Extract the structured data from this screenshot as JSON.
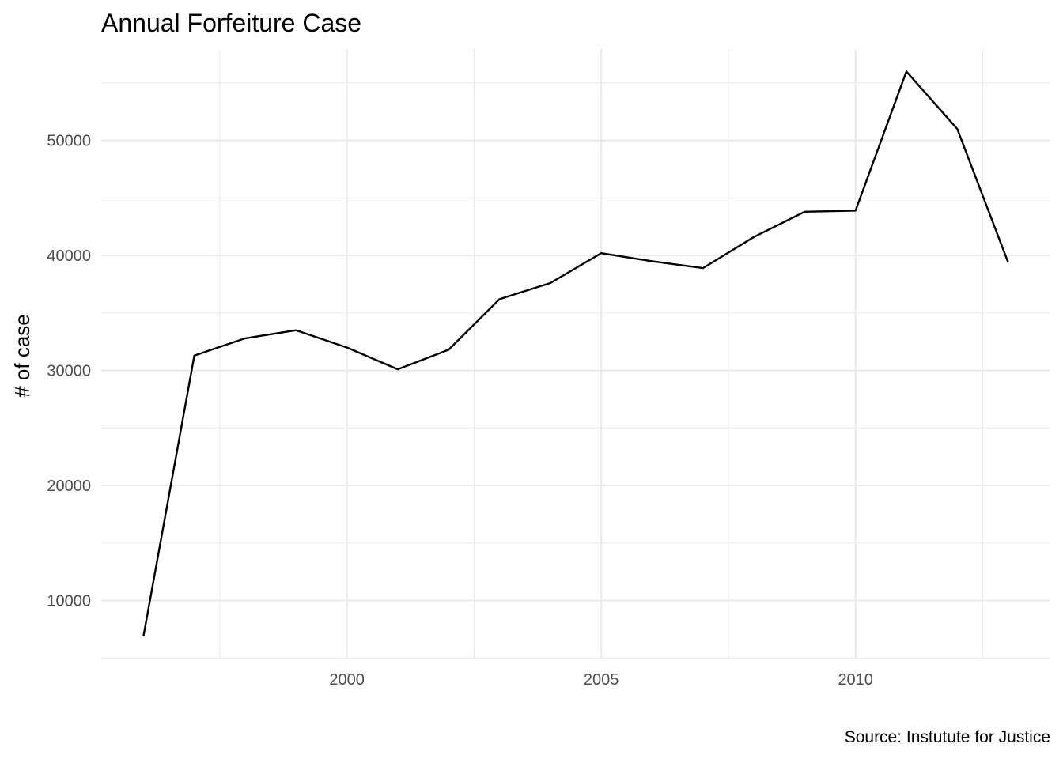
{
  "chart_data": {
    "type": "line",
    "title": "Annual Forfeiture Case",
    "xlabel": "",
    "ylabel": "# of case",
    "caption": "Source: Instutute for Justice",
    "x": [
      1996,
      1997,
      1998,
      1999,
      2000,
      2001,
      2002,
      2003,
      2004,
      2005,
      2006,
      2007,
      2008,
      2009,
      2010,
      2011,
      2012,
      2013
    ],
    "series": [
      {
        "values": [
          6900,
          31300,
          32800,
          33500,
          32000,
          30100,
          31800,
          36200,
          37600,
          40200,
          39500,
          38900,
          41600,
          43800,
          43900,
          56000,
          51000,
          39400
        ]
      }
    ],
    "xlim": [
      1995.17,
      2013.83
    ],
    "ylim": [
      4950,
      57950
    ],
    "x_ticks": [
      "2000",
      "2005",
      "2010"
    ],
    "x_tick_values": [
      2000,
      2005,
      2010
    ],
    "x_minor_ticks": [
      1997.5,
      2002.5,
      2007.5,
      2012.5
    ],
    "y_ticks": [
      "10000",
      "20000",
      "30000",
      "40000",
      "50000"
    ],
    "y_tick_values": [
      10000,
      20000,
      30000,
      40000,
      50000
    ],
    "y_minor_ticks": [
      5000,
      15000,
      25000,
      35000,
      45000,
      55000
    ],
    "grid": true,
    "line_color": "#000000",
    "grid_color": "#ebebeb"
  }
}
